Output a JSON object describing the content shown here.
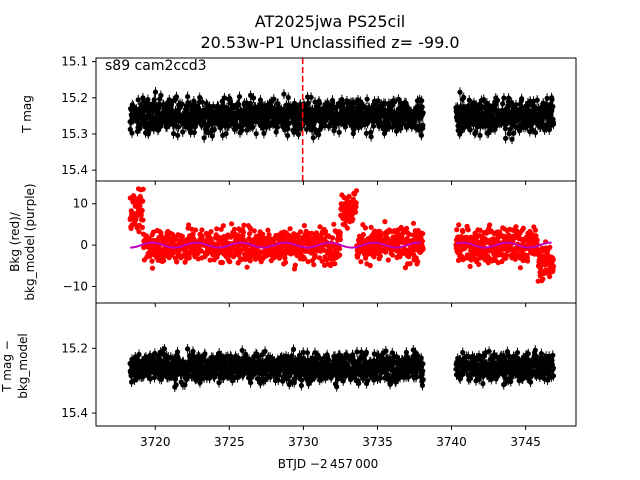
{
  "chart_data": {
    "type": "scatter",
    "title_line1": "AT2025jwa  PS25cil",
    "title_line2": "20.53w-P1 Unclassified z= -99.0",
    "annotation": "s89 cam2ccd3",
    "xlabel": "BTJD −2 457 000",
    "xlim": [
      3716.0,
      3748.4
    ],
    "x_ticks": [
      3720,
      3725,
      3730,
      3735,
      3740,
      3745
    ],
    "x_tick_labels": [
      "3720",
      "3725",
      "3730",
      "3735",
      "3740",
      "3745"
    ],
    "segments": [
      [
        3718.3,
        3738.1
      ],
      [
        3740.3,
        3746.9
      ]
    ],
    "event_time": 3729.95,
    "panels": [
      {
        "name": "top",
        "ylabel": "T mag",
        "ylim": [
          15.09,
          15.43
        ],
        "inverted": true,
        "y_ticks": [
          15.1,
          15.2,
          15.3,
          15.4
        ],
        "y_tick_labels": [
          "15.1",
          "15.2",
          "15.3",
          "15.4"
        ],
        "series": [
          {
            "color": "#000000",
            "center": 15.25,
            "scatter": 0.075,
            "errorbars": true
          }
        ]
      },
      {
        "name": "middle",
        "ylabel_line1": "Bkg (red)/",
        "ylabel_line2": "bkg_model (purple)",
        "ylim": [
          -14.0,
          15.5
        ],
        "inverted": false,
        "y_ticks": [
          10,
          0,
          -10
        ],
        "y_tick_labels": [
          "10",
          "0",
          "−10"
        ],
        "series": [
          {
            "color": "#ff0000",
            "center": 0,
            "scatter": 5.5,
            "errorbars": false
          },
          {
            "color": "#bf00bf",
            "center": 0,
            "scatter": 0.6,
            "line": true
          }
        ]
      },
      {
        "name": "bottom",
        "ylabel_line1": "T mag −",
        "ylabel_line2": "bkg_model",
        "ylim": [
          15.06,
          15.44
        ],
        "inverted": true,
        "y_ticks": [
          15.2,
          15.4
        ],
        "y_tick_labels": [
          "15.2",
          "15.4"
        ],
        "series": [
          {
            "color": "#000000",
            "center": 15.26,
            "scatter": 0.075,
            "errorbars": true
          }
        ]
      }
    ]
  }
}
